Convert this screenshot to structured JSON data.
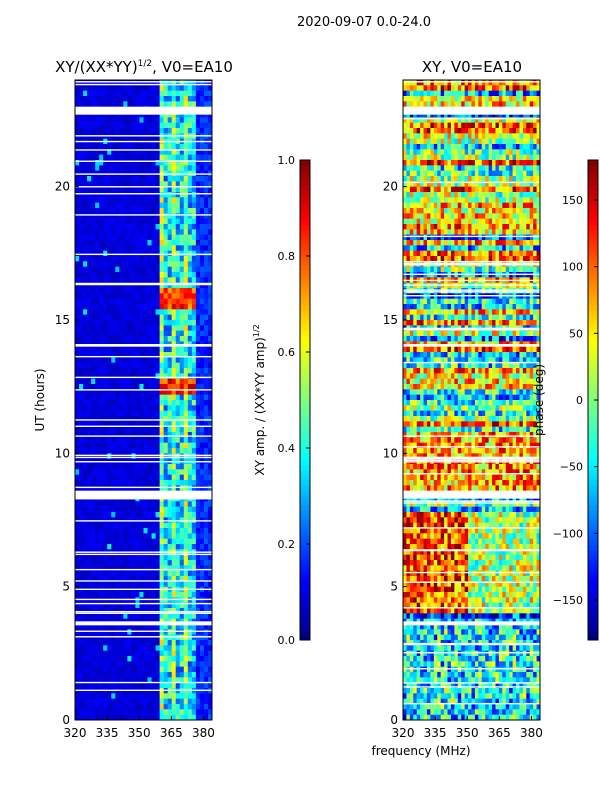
{
  "suptitle": "2020-09-07 0.0-24.0",
  "shared_xlabel": "frequency (MHz)",
  "colors": {
    "jet": [
      "#00007f",
      "#0000ff",
      "#007fff",
      "#00ffff",
      "#7fff7f",
      "#ffff00",
      "#ff7f00",
      "#ff0000",
      "#7f0000"
    ]
  },
  "chart_data": [
    {
      "type": "heatmap",
      "title_main": "XY/(XX*YY)",
      "title_exp": "1/2",
      "title_tail": ", V0=EA10",
      "xlabel": "frequency (MHz)",
      "ylabel": "UT (hours)",
      "xlim": [
        320,
        384
      ],
      "ylim": [
        0,
        24
      ],
      "xticks": [
        320,
        335,
        350,
        365,
        380
      ],
      "yticks": [
        0,
        5,
        10,
        15,
        20
      ],
      "gap_hours": [
        [
          8.3,
          8.6
        ],
        [
          3.55,
          3.7
        ],
        [
          22.7,
          23.0
        ],
        [
          14.0,
          14.1
        ]
      ],
      "colorbar": {
        "label_main": "XY amp. / (XX*YY amp)",
        "label_exp": "1/2",
        "range": [
          0.0,
          1.0
        ],
        "ticks": [
          "0.0",
          "0.2",
          "0.4",
          "0.6",
          "0.8",
          "1.0"
        ]
      }
    },
    {
      "type": "heatmap",
      "title": "XY, V0=EA10",
      "xlabel": "frequency (MHz)",
      "ylabel": "",
      "xlim": [
        320,
        384
      ],
      "ylim": [
        0,
        24
      ],
      "xticks": [
        320,
        335,
        350,
        365,
        380
      ],
      "yticks": [
        0,
        5,
        10,
        15,
        20
      ],
      "gap_hours": [
        [
          8.3,
          8.6
        ],
        [
          3.55,
          3.7
        ],
        [
          22.7,
          23.0
        ],
        [
          14.0,
          14.1
        ]
      ],
      "colorbar": {
        "label": "phase (deg)",
        "range": [
          -180,
          180
        ],
        "ticks": [
          "−150",
          "−100",
          "−50",
          "0",
          "50",
          "100",
          "150"
        ]
      }
    }
  ]
}
